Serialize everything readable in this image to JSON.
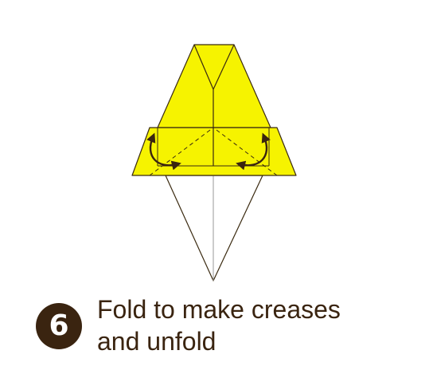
{
  "step": {
    "number": "6",
    "instruction_line1": "Fold to make creases",
    "instruction_line2": "and unfold"
  },
  "colors": {
    "paper_yellow": "#f6f300",
    "paper_white": "#ffffff",
    "outline": "#3a2a10",
    "crease": "#8a8a8a",
    "arrow": "#3a2410",
    "badge": "#3a2410"
  },
  "icons": {
    "left_arrow": "curved-fold-unfold-arrow-icon",
    "right_arrow": "curved-fold-unfold-arrow-icon"
  }
}
